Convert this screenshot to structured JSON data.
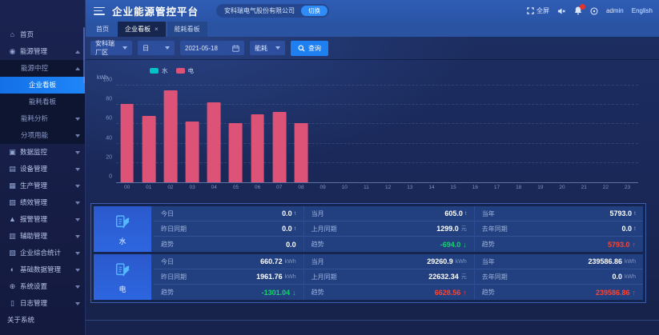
{
  "app": {
    "title": "企业能源管控平台",
    "company": "安科瑞电气股份有限公司",
    "switch_label": "切换"
  },
  "topbar": {
    "fullscreen_label": "全屏",
    "user": "admin",
    "language": "English",
    "badge_dot": true
  },
  "tabs": [
    {
      "label": "首页",
      "closable": false,
      "active": false,
      "filled": false
    },
    {
      "label": "企业看板",
      "closable": true,
      "active": true,
      "filled": true
    },
    {
      "label": "能耗看板",
      "closable": false,
      "active": false,
      "filled": true
    }
  ],
  "filters": {
    "area": "安科瑞厂区",
    "period": "日",
    "date": "2021-05-18",
    "type": "能耗",
    "search_label": "查询"
  },
  "sidebar": {
    "items": [
      {
        "label": "首页",
        "icon": "home-icon",
        "level": 0,
        "arrow": null,
        "active": false,
        "dark": false
      },
      {
        "label": "能源管理",
        "icon": "energy-icon",
        "level": 0,
        "arrow": "up",
        "active": false,
        "dark": false
      },
      {
        "label": "能源中控",
        "icon": null,
        "level": 1,
        "arrow": "up",
        "active": false,
        "dark": true
      },
      {
        "label": "企业看板",
        "icon": null,
        "level": 2,
        "arrow": null,
        "active": true,
        "dark": true
      },
      {
        "label": "能耗看板",
        "icon": null,
        "level": 2,
        "arrow": null,
        "active": false,
        "dark": true
      },
      {
        "label": "能耗分析",
        "icon": null,
        "level": 1,
        "arrow": "down",
        "active": false,
        "dark": true
      },
      {
        "label": "分项用能",
        "icon": null,
        "level": 1,
        "arrow": "down",
        "active": false,
        "dark": true
      },
      {
        "label": "数据监控",
        "icon": "monitor-icon",
        "level": 0,
        "arrow": "down",
        "active": false,
        "dark": false
      },
      {
        "label": "设备管理",
        "icon": "device-icon",
        "level": 0,
        "arrow": "down",
        "active": false,
        "dark": false
      },
      {
        "label": "生产管理",
        "icon": "production-icon",
        "level": 0,
        "arrow": "down",
        "active": false,
        "dark": false
      },
      {
        "label": "绩效管理",
        "icon": "performance-icon",
        "level": 0,
        "arrow": "down",
        "active": false,
        "dark": false
      },
      {
        "label": "报警管理",
        "icon": "alarm-icon",
        "level": 0,
        "arrow": "down",
        "active": false,
        "dark": false
      },
      {
        "label": "辅助管理",
        "icon": "assist-icon",
        "level": 0,
        "arrow": "down",
        "active": false,
        "dark": false
      },
      {
        "label": "企业综合统计",
        "icon": "stats-icon",
        "level": 0,
        "arrow": "down",
        "active": false,
        "dark": false
      },
      {
        "label": "基础数据管理",
        "icon": "data-icon",
        "level": 0,
        "arrow": "down",
        "active": false,
        "dark": false
      },
      {
        "label": "系统设置",
        "icon": "settings-icon",
        "level": 0,
        "arrow": "down",
        "active": false,
        "dark": false
      },
      {
        "label": "日志管理",
        "icon": "log-icon",
        "level": 0,
        "arrow": "down",
        "active": false,
        "dark": false
      },
      {
        "label": "关于系统",
        "icon": null,
        "level": 0,
        "arrow": null,
        "active": false,
        "dark": false
      }
    ]
  },
  "icons": {
    "home-icon": "⌂",
    "energy-icon": "◉",
    "monitor-icon": "▣",
    "device-icon": "▤",
    "production-icon": "▦",
    "performance-icon": "▨",
    "alarm-icon": "▲",
    "assist-icon": "▥",
    "stats-icon": "▧",
    "data-icon": "◐",
    "settings-icon": "⊕",
    "log-icon": "▯"
  },
  "colors": {
    "accent_blue": "#1e80f0",
    "trend_up": "#ff4230",
    "trend_down": "#15d26f",
    "bar_electric": "#dd5377",
    "legend_water": "#00c3c8"
  },
  "chart_data": {
    "type": "bar",
    "title": "",
    "xlabel": "",
    "ylabel": "kWh",
    "ylim": [
      0,
      100
    ],
    "yticks": [
      0,
      20,
      40,
      60,
      80,
      100
    ],
    "grid": "dashed-horizontal",
    "legend_position": "top-left",
    "x": [
      "00",
      "01",
      "02",
      "03",
      "04",
      "05",
      "06",
      "07",
      "08",
      "09",
      "10",
      "11",
      "12",
      "13",
      "14",
      "15",
      "16",
      "17",
      "18",
      "19",
      "20",
      "21",
      "22",
      "23"
    ],
    "series": [
      {
        "name": "水",
        "color": "#00c3c8",
        "values": [
          0,
          0,
          0,
          0,
          0,
          0,
          0,
          0,
          0,
          0,
          0,
          0,
          0,
          0,
          0,
          0,
          0,
          0,
          0,
          0,
          0,
          0,
          0,
          0
        ]
      },
      {
        "name": "电",
        "color": "#dd5377",
        "values": [
          81,
          69,
          95,
          63,
          83,
          61,
          70,
          73,
          61,
          0,
          0,
          0,
          0,
          0,
          0,
          0,
          0,
          0,
          0,
          0,
          0,
          0,
          0,
          0
        ]
      }
    ],
    "legend": [
      "水",
      "电"
    ]
  },
  "stats": {
    "rows": [
      {
        "name": "水",
        "icon": "water-energy-icon",
        "groups": [
          {
            "metrics": [
              {
                "label": "今日",
                "value": "0.0",
                "unit": "t",
                "trend": null
              },
              {
                "label": "昨日同期",
                "value": "0.0",
                "unit": "t",
                "trend": null
              },
              {
                "label": "趋势",
                "value": "0.0",
                "unit": "",
                "trend": null
              }
            ]
          },
          {
            "metrics": [
              {
                "label": "当月",
                "value": "605.0",
                "unit": "t",
                "trend": null
              },
              {
                "label": "上月同期",
                "value": "1299.0",
                "unit": "元",
                "trend": null
              },
              {
                "label": "趋势",
                "value": "-694.0",
                "unit": "",
                "trend": "down"
              }
            ]
          },
          {
            "metrics": [
              {
                "label": "当年",
                "value": "5793.0",
                "unit": "t",
                "trend": null
              },
              {
                "label": "去年同期",
                "value": "0.0",
                "unit": "t",
                "trend": null
              },
              {
                "label": "趋势",
                "value": "5793.0",
                "unit": "",
                "trend": "up"
              }
            ]
          }
        ]
      },
      {
        "name": "电",
        "icon": "electric-energy-icon",
        "groups": [
          {
            "metrics": [
              {
                "label": "今日",
                "value": "660.72",
                "unit": "kWh",
                "trend": null
              },
              {
                "label": "昨日同期",
                "value": "1961.76",
                "unit": "kWh",
                "trend": null
              },
              {
                "label": "趋势",
                "value": "-1301.04",
                "unit": "",
                "trend": "down"
              }
            ]
          },
          {
            "metrics": [
              {
                "label": "当月",
                "value": "29260.9",
                "unit": "kWh",
                "trend": null
              },
              {
                "label": "上月同期",
                "value": "22632.34",
                "unit": "元",
                "trend": null
              },
              {
                "label": "趋势",
                "value": "6628.56",
                "unit": "",
                "trend": "up"
              }
            ]
          },
          {
            "metrics": [
              {
                "label": "当年",
                "value": "239586.86",
                "unit": "kWh",
                "trend": null
              },
              {
                "label": "去年同期",
                "value": "0.0",
                "unit": "kWh",
                "trend": null
              },
              {
                "label": "趋势",
                "value": "239586.86",
                "unit": "",
                "trend": "up"
              }
            ]
          }
        ]
      }
    ]
  }
}
